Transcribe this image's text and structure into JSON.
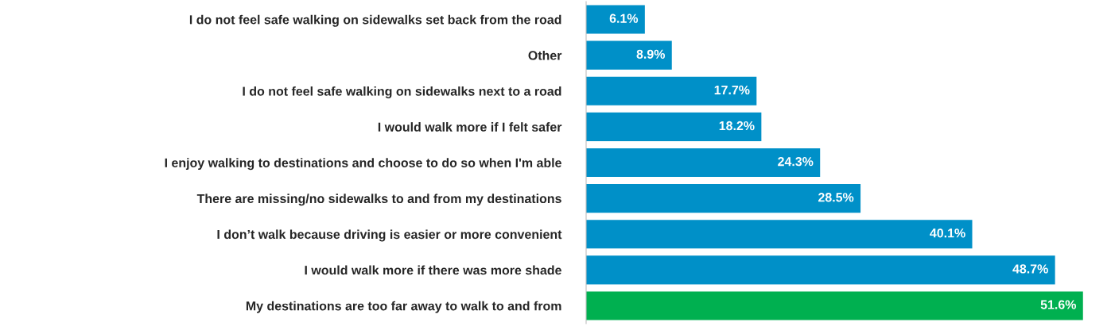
{
  "chart_data": {
    "type": "bar",
    "orientation": "horizontal",
    "categories": [
      "I do not feel safe walking on sidewalks set back from the road",
      "Other",
      "I do not feel safe walking on sidewalks next to a road",
      "I would walk more if I felt safer",
      "I enjoy walking to destinations and choose to do so when I'm able",
      "There are missing/no sidewalks to and from my destinations",
      "I don’t walk because driving is easier or more convenient",
      "I would walk more if there was more shade",
      "My destinations are too far away to walk to and from"
    ],
    "values": [
      6.1,
      8.9,
      17.7,
      18.2,
      24.3,
      28.5,
      40.1,
      48.7,
      51.6
    ],
    "colors": [
      "#0090c8",
      "#0090c8",
      "#0090c8",
      "#0090c8",
      "#0090c8",
      "#0090c8",
      "#0090c8",
      "#0090c8",
      "#00b050"
    ],
    "value_labels": [
      "6.1%",
      "8.9%",
      "17.7%",
      "18.2%",
      "24.3%",
      "28.5%",
      "40.1%",
      "48.7%",
      "51.6%"
    ],
    "grid": false,
    "legend": false,
    "tick_labels": "y"
  }
}
